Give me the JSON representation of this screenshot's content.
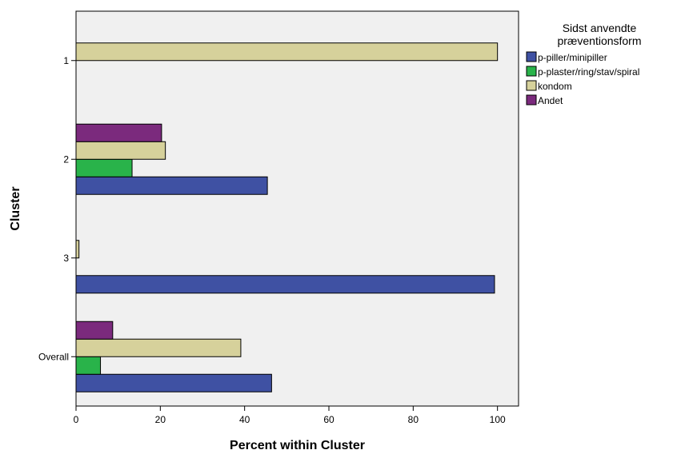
{
  "chart_data": {
    "type": "bar",
    "orientation": "horizontal",
    "title": "",
    "xlabel": "Percent within Cluster",
    "ylabel": "Cluster",
    "xlim": [
      0,
      105
    ],
    "xticks": [
      0,
      20,
      40,
      60,
      80,
      100
    ],
    "categories": [
      "1",
      "2",
      "3",
      "Overall"
    ],
    "legend": {
      "title_lines": [
        "Sidst anvendte",
        "præventionsform"
      ],
      "placement": "right"
    },
    "series": [
      {
        "name": "p-piller/minipiller",
        "color": "#3f51a3",
        "values": [
          0,
          45.4,
          99.3,
          46.4
        ]
      },
      {
        "name": "p-plaster/ring/stav/spiral",
        "color": "#29b34a",
        "values": [
          0,
          13.3,
          0,
          5.8
        ]
      },
      {
        "name": "kondom",
        "color": "#d6d19b",
        "values": [
          100,
          21.2,
          0.7,
          39.1
        ]
      },
      {
        "name": "Andet",
        "color": "#7b2a7d",
        "values": [
          0,
          20.3,
          0,
          8.7
        ]
      }
    ],
    "grid": false,
    "plot_background": "#f0f0f0"
  }
}
